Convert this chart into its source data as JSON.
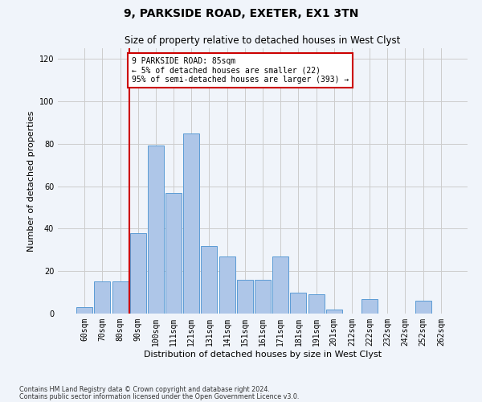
{
  "title1": "9, PARKSIDE ROAD, EXETER, EX1 3TN",
  "title2": "Size of property relative to detached houses in West Clyst",
  "xlabel": "Distribution of detached houses by size in West Clyst",
  "ylabel": "Number of detached properties",
  "categories": [
    "60sqm",
    "70sqm",
    "80sqm",
    "90sqm",
    "100sqm",
    "111sqm",
    "121sqm",
    "131sqm",
    "141sqm",
    "151sqm",
    "161sqm",
    "171sqm",
    "181sqm",
    "191sqm",
    "201sqm",
    "212sqm",
    "222sqm",
    "232sqm",
    "242sqm",
    "252sqm",
    "262sqm"
  ],
  "values": [
    3,
    15,
    15,
    38,
    79,
    57,
    85,
    32,
    27,
    16,
    16,
    27,
    10,
    9,
    2,
    0,
    7,
    0,
    0,
    6,
    0
  ],
  "bar_color": "#aec6e8",
  "bar_edge_color": "#5b9bd5",
  "red_line_x": 2.5,
  "annotation_text": "9 PARKSIDE ROAD: 85sqm\n← 5% of detached houses are smaller (22)\n95% of semi-detached houses are larger (393) →",
  "annotation_box_color": "#ffffff",
  "annotation_box_edge": "#cc0000",
  "grid_color": "#cccccc",
  "ylim": [
    0,
    125
  ],
  "yticks": [
    0,
    20,
    40,
    60,
    80,
    100,
    120
  ],
  "footer1": "Contains HM Land Registry data © Crown copyright and database right 2024.",
  "footer2": "Contains public sector information licensed under the Open Government Licence v3.0.",
  "background_color": "#f0f4fa",
  "title1_fontsize": 10,
  "title2_fontsize": 8.5,
  "ylabel_fontsize": 8,
  "xlabel_fontsize": 8,
  "tick_fontsize": 7,
  "ann_fontsize": 7,
  "footer_fontsize": 5.8
}
